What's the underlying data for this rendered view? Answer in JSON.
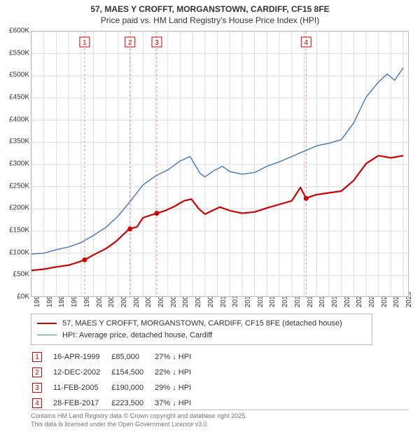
{
  "title": {
    "line1": "57, MAES Y CROFFT, MORGANSTOWN, CARDIFF, CF15 8FE",
    "line2": "Price paid vs. HM Land Registry's House Price Index (HPI)"
  },
  "chart": {
    "type": "line",
    "background_color": "#ffffff",
    "grid_color": "#dddddd",
    "axis_color": "#bbbbbb",
    "font_size_ticks": 10,
    "x": {
      "min": 1995,
      "max": 2025.5,
      "ticks": [
        1995,
        1996,
        1997,
        1998,
        1999,
        2000,
        2001,
        2002,
        2003,
        2004,
        2005,
        2006,
        2007,
        2008,
        2009,
        2010,
        2011,
        2012,
        2013,
        2014,
        2015,
        2016,
        2017,
        2018,
        2019,
        2020,
        2021,
        2022,
        2023,
        2024,
        2025
      ]
    },
    "y": {
      "min": 0,
      "max": 600,
      "label_prefix": "£",
      "label_suffix": "K",
      "ticks": [
        0,
        50,
        100,
        150,
        200,
        250,
        300,
        350,
        400,
        450,
        500,
        550,
        600
      ]
    },
    "series": [
      {
        "name": "property",
        "label": "57, MAES Y CROFFT, MORGANSTOWN, CARDIFF, CF15 8FE (detached house)",
        "color": "#d00000",
        "line_width": 2.2,
        "data": [
          [
            1995,
            61
          ],
          [
            1996,
            64
          ],
          [
            1997,
            69
          ],
          [
            1998,
            73
          ],
          [
            1998.7,
            79
          ],
          [
            1999.3,
            85
          ],
          [
            2000,
            96
          ],
          [
            2001,
            110
          ],
          [
            2001.8,
            126
          ],
          [
            2002.9,
            155
          ],
          [
            2003.5,
            159
          ],
          [
            2004,
            180
          ],
          [
            2005.1,
            190
          ],
          [
            2005.8,
            196
          ],
          [
            2006.5,
            205
          ],
          [
            2007.3,
            218
          ],
          [
            2007.9,
            222
          ],
          [
            2008.5,
            200
          ],
          [
            2009,
            188
          ],
          [
            2009.6,
            196
          ],
          [
            2010.2,
            204
          ],
          [
            2011,
            196
          ],
          [
            2012,
            190
          ],
          [
            2013,
            193
          ],
          [
            2014,
            202
          ],
          [
            2015,
            210
          ],
          [
            2016,
            218
          ],
          [
            2016.7,
            248
          ],
          [
            2017.15,
            224
          ],
          [
            2018,
            232
          ],
          [
            2019,
            236
          ],
          [
            2020,
            240
          ],
          [
            2021,
            264
          ],
          [
            2022,
            302
          ],
          [
            2023,
            320
          ],
          [
            2024,
            315
          ],
          [
            2025,
            320
          ]
        ]
      },
      {
        "name": "hpi",
        "label": "HPI: Average price, detached house, Cardiff",
        "color": "#4a7fc1",
        "line_width": 1.5,
        "data": [
          [
            1995,
            98
          ],
          [
            1996,
            100
          ],
          [
            1997,
            108
          ],
          [
            1998,
            114
          ],
          [
            1999,
            124
          ],
          [
            2000,
            140
          ],
          [
            2001,
            158
          ],
          [
            2002,
            184
          ],
          [
            2003,
            218
          ],
          [
            2004,
            254
          ],
          [
            2005,
            274
          ],
          [
            2006,
            288
          ],
          [
            2007,
            308
          ],
          [
            2007.8,
            318
          ],
          [
            2008.6,
            280
          ],
          [
            2009,
            272
          ],
          [
            2009.7,
            286
          ],
          [
            2010.4,
            296
          ],
          [
            2011,
            284
          ],
          [
            2012,
            278
          ],
          [
            2013,
            282
          ],
          [
            2014,
            296
          ],
          [
            2015,
            306
          ],
          [
            2016,
            318
          ],
          [
            2017,
            330
          ],
          [
            2018,
            342
          ],
          [
            2019,
            348
          ],
          [
            2020,
            356
          ],
          [
            2021,
            394
          ],
          [
            2022,
            452
          ],
          [
            2023,
            486
          ],
          [
            2023.7,
            504
          ],
          [
            2024.3,
            490
          ],
          [
            2025,
            518
          ]
        ]
      }
    ],
    "markers": [
      {
        "n": "1",
        "x": 1999.29
      },
      {
        "n": "2",
        "x": 2002.95
      },
      {
        "n": "3",
        "x": 2005.11
      },
      {
        "n": "4",
        "x": 2017.16
      }
    ],
    "sale_points": [
      {
        "x": 1999.29,
        "y": 85
      },
      {
        "x": 2002.95,
        "y": 154.5
      },
      {
        "x": 2005.11,
        "y": 190
      },
      {
        "x": 2017.16,
        "y": 223.5
      }
    ],
    "marker_line_color": "#d88",
    "marker_box_border": "#d00000",
    "marker_box_text": "#d00000"
  },
  "legend": {
    "items": [
      {
        "color": "#d00000",
        "width": 2.2,
        "label": "57, MAES Y CROFFT, MORGANSTOWN, CARDIFF, CF15 8FE (detached house)"
      },
      {
        "color": "#4a7fc1",
        "width": 1.5,
        "label": "HPI: Average price, detached house, Cardiff"
      }
    ]
  },
  "sales": [
    {
      "n": "1",
      "date": "16-APR-1999",
      "price": "£85,000",
      "delta": "27% ↓ HPI"
    },
    {
      "n": "2",
      "date": "12-DEC-2002",
      "price": "£154,500",
      "delta": "22% ↓ HPI"
    },
    {
      "n": "3",
      "date": "11-FEB-2005",
      "price": "£190,000",
      "delta": "29% ↓ HPI"
    },
    {
      "n": "4",
      "date": "28-FEB-2017",
      "price": "£223,500",
      "delta": "37% ↓ HPI"
    }
  ],
  "footer": {
    "line1": "Contains HM Land Registry data © Crown copyright and database right 2025.",
    "line2": "This data is licensed under the Open Government Licence v3.0."
  }
}
